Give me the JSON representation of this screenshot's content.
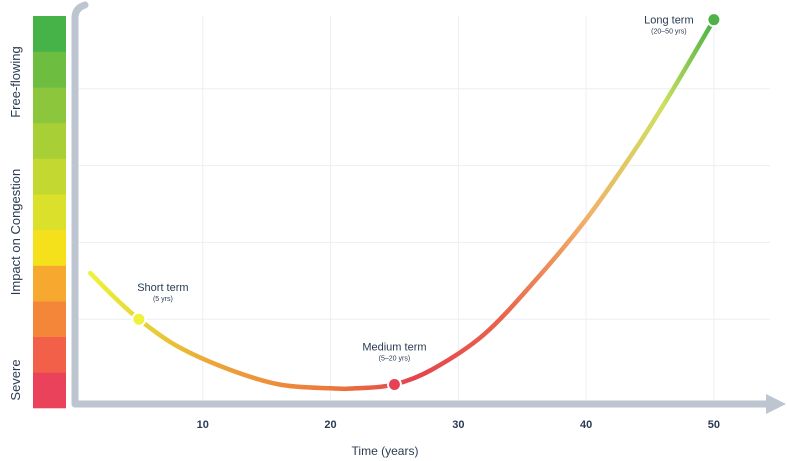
{
  "chart_data": {
    "type": "line",
    "xlabel": "Time (years)",
    "x_ticks": [
      10,
      20,
      30,
      40,
      50
    ],
    "xlim": [
      0,
      54
    ],
    "ylim": [
      0,
      1
    ],
    "ylabel": "Impact on Congestion",
    "y_scale_labels": {
      "top": "Free-flowing",
      "bottom": "Severe"
    },
    "scale_colors": [
      "#e9425a",
      "#f2604a",
      "#f4863a",
      "#f6a92e",
      "#f4e11c",
      "#dbe02a",
      "#c3d932",
      "#a8cf36",
      "#8cc63c",
      "#6cbd40",
      "#45b348"
    ],
    "grid": true,
    "series": [
      {
        "x": [
          1.2,
          3,
          5,
          8,
          12,
          16,
          20,
          22,
          25,
          28,
          32,
          36,
          40,
          44,
          47,
          50
        ],
        "y": [
          0.32,
          0.26,
          0.2,
          0.13,
          0.07,
          0.03,
          0.02,
          0.02,
          0.03,
          0.07,
          0.16,
          0.3,
          0.46,
          0.65,
          0.81,
          0.98
        ]
      }
    ],
    "annotations": [
      {
        "label": "Short term",
        "sublabel": "(5 yrs)",
        "x": 5,
        "y": 0.2,
        "color": "#eef23a"
      },
      {
        "label": "Medium term",
        "sublabel": "(5–20 yrs)",
        "x": 25,
        "y": 0.03,
        "color": "#e84156"
      },
      {
        "label": "Long term",
        "sublabel": "(20–50 yrs)",
        "x": 50,
        "y": 0.98,
        "color": "#4db348"
      }
    ]
  }
}
